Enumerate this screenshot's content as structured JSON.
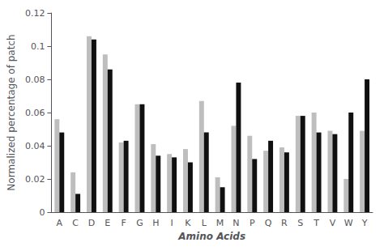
{
  "chart_data": {
    "type": "bar",
    "xlabel": "Amino Acids",
    "ylabel": "Normalized percentage of patch",
    "categories": [
      "A",
      "C",
      "D",
      "E",
      "F",
      "G",
      "H",
      "I",
      "K",
      "L",
      "M",
      "N",
      "P",
      "Q",
      "R",
      "S",
      "T",
      "V",
      "W",
      "Y"
    ],
    "series": [
      {
        "color": "#bebebe",
        "values": [
          0.056,
          0.024,
          0.106,
          0.095,
          0.042,
          0.065,
          0.041,
          0.035,
          0.038,
          0.067,
          0.021,
          0.052,
          0.046,
          0.037,
          0.039,
          0.058,
          0.06,
          0.049,
          0.02,
          0.049
        ]
      },
      {
        "color": "#101010",
        "values": [
          0.048,
          0.011,
          0.104,
          0.086,
          0.043,
          0.065,
          0.034,
          0.033,
          0.03,
          0.048,
          0.015,
          0.078,
          0.032,
          0.043,
          0.036,
          0.058,
          0.048,
          0.047,
          0.06,
          0.08
        ]
      }
    ],
    "ylim": [
      0,
      0.12
    ],
    "yticks": [
      0,
      0.02,
      0.04,
      0.06,
      0.08,
      0.1,
      0.12
    ],
    "grid": false
  }
}
